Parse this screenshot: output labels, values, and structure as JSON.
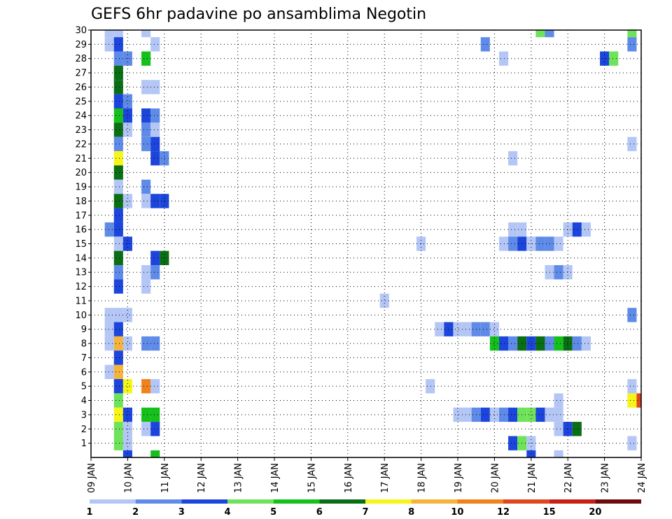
{
  "chart_data": {
    "type": "heatmap",
    "title": "GEFS 6hr padavine po ansamblima Negotin",
    "xlabel": "",
    "ylabel": "",
    "x_tick_labels": [
      "09 JAN",
      "10 JAN",
      "11 JAN",
      "12 JAN",
      "13 JAN",
      "14 JAN",
      "15 JAN",
      "16 JAN",
      "17 JAN",
      "18 JAN",
      "19 JAN",
      "20 JAN",
      "21 JAN",
      "22 JAN",
      "23 JAN",
      "24 JAN"
    ],
    "x_range": [
      0,
      60
    ],
    "steps_per_day": 4,
    "y_tick_labels": [
      "1",
      "2",
      "3",
      "4",
      "5",
      "6",
      "7",
      "8",
      "9",
      "10",
      "11",
      "12",
      "13",
      "14",
      "15",
      "16",
      "17",
      "18",
      "19",
      "20",
      "21",
      "22",
      "23",
      "24",
      "25",
      "26",
      "27",
      "28",
      "29",
      "30"
    ],
    "y_range": [
      0,
      30
    ],
    "grid": true,
    "colorbar": {
      "labels": [
        "1",
        "2",
        "3",
        "4",
        "5",
        "6",
        "7",
        "8",
        "10",
        "12",
        "15",
        "20"
      ],
      "colors": [
        "#b4c6f5",
        "#5f8be8",
        "#1c45dc",
        "#6ee35a",
        "#14c01a",
        "#0a6e14",
        "#f5f51a",
        "#f5b43c",
        "#f0821e",
        "#e0461e",
        "#c81e14",
        "#6e0a0a"
      ]
    },
    "cells_note": "each cell: [ensemble_member, time_step_index (6h steps from 09 JAN 00Z), color_class_index]",
    "cells": [
      [
        30,
        2,
        0
      ],
      [
        30,
        3,
        0
      ],
      [
        30,
        6,
        0
      ],
      [
        30,
        49,
        3
      ],
      [
        30,
        50,
        1
      ],
      [
        30,
        59,
        3
      ],
      [
        29,
        2,
        0
      ],
      [
        29,
        3,
        2
      ],
      [
        29,
        7,
        0
      ],
      [
        29,
        43,
        1
      ],
      [
        29,
        59,
        1
      ],
      [
        28,
        3,
        1
      ],
      [
        28,
        4,
        1
      ],
      [
        28,
        6,
        4
      ],
      [
        28,
        45,
        0
      ],
      [
        28,
        56,
        2
      ],
      [
        28,
        57,
        3
      ],
      [
        27,
        3,
        5
      ],
      [
        26,
        3,
        5
      ],
      [
        26,
        6,
        0
      ],
      [
        26,
        7,
        0
      ],
      [
        25,
        3,
        2
      ],
      [
        25,
        4,
        1
      ],
      [
        24,
        3,
        4
      ],
      [
        24,
        4,
        2
      ],
      [
        24,
        6,
        2
      ],
      [
        24,
        7,
        1
      ],
      [
        23,
        3,
        5
      ],
      [
        23,
        4,
        0
      ],
      [
        23,
        6,
        1
      ],
      [
        23,
        7,
        0
      ],
      [
        22,
        3,
        1
      ],
      [
        22,
        6,
        1
      ],
      [
        22,
        7,
        2
      ],
      [
        22,
        59,
        0
      ],
      [
        21,
        3,
        6
      ],
      [
        21,
        7,
        2
      ],
      [
        21,
        8,
        1
      ],
      [
        21,
        46,
        0
      ],
      [
        20,
        3,
        5
      ],
      [
        19,
        3,
        0
      ],
      [
        19,
        6,
        1
      ],
      [
        18,
        3,
        5
      ],
      [
        18,
        4,
        0
      ],
      [
        18,
        6,
        0
      ],
      [
        18,
        7,
        2
      ],
      [
        18,
        8,
        2
      ],
      [
        17,
        3,
        2
      ],
      [
        16,
        2,
        1
      ],
      [
        16,
        3,
        2
      ],
      [
        16,
        46,
        0
      ],
      [
        16,
        47,
        0
      ],
      [
        16,
        52,
        0
      ],
      [
        16,
        53,
        2
      ],
      [
        16,
        54,
        0
      ],
      [
        15,
        3,
        0
      ],
      [
        15,
        4,
        2
      ],
      [
        15,
        36,
        0
      ],
      [
        15,
        45,
        0
      ],
      [
        15,
        46,
        1
      ],
      [
        15,
        47,
        2
      ],
      [
        15,
        48,
        0
      ],
      [
        15,
        49,
        1
      ],
      [
        15,
        50,
        1
      ],
      [
        15,
        51,
        0
      ],
      [
        14,
        3,
        5
      ],
      [
        14,
        7,
        2
      ],
      [
        14,
        8,
        5
      ],
      [
        13,
        3,
        1
      ],
      [
        13,
        6,
        0
      ],
      [
        13,
        7,
        1
      ],
      [
        13,
        50,
        0
      ],
      [
        13,
        51,
        1
      ],
      [
        13,
        52,
        0
      ],
      [
        12,
        3,
        2
      ],
      [
        12,
        6,
        0
      ],
      [
        11,
        32,
        0
      ],
      [
        10,
        2,
        0
      ],
      [
        10,
        3,
        0
      ],
      [
        10,
        4,
        0
      ],
      [
        10,
        59,
        1
      ],
      [
        9,
        2,
        0
      ],
      [
        9,
        3,
        2
      ],
      [
        9,
        38,
        0
      ],
      [
        9,
        39,
        2
      ],
      [
        9,
        40,
        0
      ],
      [
        9,
        41,
        0
      ],
      [
        9,
        42,
        1
      ],
      [
        9,
        43,
        1
      ],
      [
        9,
        44,
        0
      ],
      [
        8,
        2,
        0
      ],
      [
        8,
        3,
        7
      ],
      [
        8,
        4,
        0
      ],
      [
        8,
        6,
        1
      ],
      [
        8,
        7,
        1
      ],
      [
        8,
        44,
        4
      ],
      [
        8,
        45,
        2
      ],
      [
        8,
        46,
        1
      ],
      [
        8,
        47,
        5
      ],
      [
        8,
        48,
        2
      ],
      [
        8,
        49,
        5
      ],
      [
        8,
        50,
        1
      ],
      [
        8,
        51,
        4
      ],
      [
        8,
        52,
        5
      ],
      [
        8,
        53,
        1
      ],
      [
        8,
        54,
        0
      ],
      [
        7,
        3,
        2
      ],
      [
        6,
        2,
        0
      ],
      [
        6,
        3,
        7
      ],
      [
        5,
        3,
        2
      ],
      [
        5,
        4,
        6
      ],
      [
        5,
        6,
        8
      ],
      [
        5,
        7,
        0
      ],
      [
        5,
        37,
        0
      ],
      [
        5,
        59,
        0
      ],
      [
        4,
        3,
        3
      ],
      [
        4,
        51,
        0
      ],
      [
        4,
        59,
        6
      ],
      [
        4,
        60,
        9
      ],
      [
        3,
        3,
        6
      ],
      [
        3,
        4,
        2
      ],
      [
        3,
        6,
        4
      ],
      [
        3,
        7,
        4
      ],
      [
        3,
        40,
        0
      ],
      [
        3,
        41,
        0
      ],
      [
        3,
        42,
        1
      ],
      [
        3,
        43,
        2
      ],
      [
        3,
        44,
        0
      ],
      [
        3,
        45,
        1
      ],
      [
        3,
        46,
        2
      ],
      [
        3,
        47,
        3
      ],
      [
        3,
        48,
        3
      ],
      [
        3,
        49,
        2
      ],
      [
        3,
        50,
        0
      ],
      [
        3,
        51,
        0
      ],
      [
        2,
        3,
        3
      ],
      [
        2,
        4,
        0
      ],
      [
        2,
        6,
        0
      ],
      [
        2,
        7,
        2
      ],
      [
        2,
        51,
        0
      ],
      [
        2,
        52,
        2
      ],
      [
        2,
        53,
        5
      ],
      [
        1,
        3,
        3
      ],
      [
        1,
        4,
        0
      ],
      [
        1,
        46,
        2
      ],
      [
        1,
        47,
        3
      ],
      [
        1,
        48,
        0
      ],
      [
        1,
        59,
        0
      ],
      [
        0,
        4,
        2
      ],
      [
        0,
        7,
        4
      ],
      [
        0,
        48,
        2
      ],
      [
        0,
        51,
        0
      ]
    ]
  }
}
